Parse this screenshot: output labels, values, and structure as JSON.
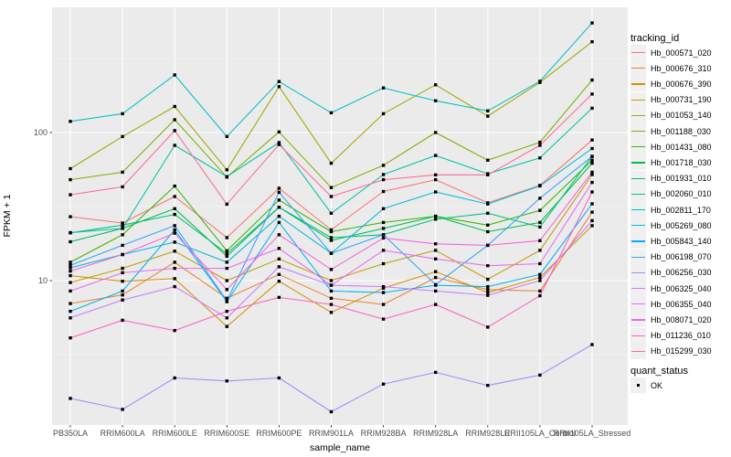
{
  "figure": {
    "background": "#FFFFFF",
    "panel_background": "#EBEBEB",
    "grid_major_color": "#FFFFFF",
    "grid_minor_color": "#FFFFFF",
    "tick_text_color": "#4D4D4D",
    "marker_color": "#000000",
    "legend_key_background": "#F0F0F0"
  },
  "chart_data": {
    "type": "line",
    "title": "",
    "xlabel": "sample_name",
    "ylabel": "FPKM + 1",
    "y_scale": "log10",
    "ylim": [
      1,
      680
    ],
    "y_major_ticks": [
      10,
      100
    ],
    "y_minor_ticks": [
      3.1623,
      31.623,
      316.23
    ],
    "grid": true,
    "legend_title": "tracking_id",
    "legend_position": "right",
    "marker": "black-square",
    "categories": [
      "PB350LA",
      "RRIM600LA",
      "RRIM600LE",
      "RRIM600SE",
      "RRIM600PE",
      "RRIM901LA",
      "RRIM928BA",
      "RRIM928LA",
      "RRIM928LE",
      "RRII105LA_Control",
      "RRII105LA_Stressed"
    ],
    "series": [
      {
        "name": "Hb_000571_020",
        "color": "#F8766D",
        "values": [
          27,
          24.5,
          37,
          19.5,
          42,
          22,
          40,
          48,
          33.5,
          44,
          89
        ]
      },
      {
        "name": "Hb_000676_310",
        "color": "#EA8331",
        "values": [
          7.0,
          8.0,
          13.3,
          7.6,
          11.0,
          7.6,
          6.9,
          10.5,
          8.7,
          8.5,
          29
        ]
      },
      {
        "name": "Hb_000676_390",
        "color": "#D89000",
        "values": [
          10.8,
          9.9,
          10.3,
          4.9,
          9.9,
          6.1,
          8.9,
          11.5,
          8.3,
          10.5,
          23.5
        ]
      },
      {
        "name": "Hb_000731_190",
        "color": "#C09B00",
        "values": [
          9.7,
          12.1,
          15.8,
          10.0,
          14.0,
          10.0,
          13.0,
          16.0,
          10.2,
          16.0,
          52
        ]
      },
      {
        "name": "Hb_001053_140",
        "color": "#A3A500",
        "values": [
          57,
          94,
          150,
          56,
          204,
          62,
          134,
          210,
          129,
          218,
          410
        ]
      },
      {
        "name": "Hb_001188_030",
        "color": "#7CAE00",
        "values": [
          48,
          54,
          122,
          50,
          101,
          42.5,
          60,
          100,
          65,
          86,
          226
        ]
      },
      {
        "name": "Hb_001431_080",
        "color": "#39B600",
        "values": [
          13.3,
          20.4,
          43.5,
          15.9,
          35,
          21.4,
          24.7,
          27.2,
          23.7,
          29.8,
          65
        ]
      },
      {
        "name": "Hb_001718_030",
        "color": "#00BB4E",
        "values": [
          18.3,
          22.5,
          30.6,
          14.6,
          31.3,
          18.7,
          22.5,
          27.2,
          21.4,
          24.7,
          62
        ]
      },
      {
        "name": "Hb_001931_010",
        "color": "#00BF7D",
        "values": [
          21,
          23.7,
          28,
          15.2,
          31.3,
          19.5,
          20.4,
          26,
          28.5,
          23,
          69
        ]
      },
      {
        "name": "Hb_002060_010",
        "color": "#00C1A3",
        "values": [
          21.1,
          22.5,
          82,
          50.4,
          85.5,
          28.5,
          52,
          70,
          52.7,
          67.4,
          146
        ]
      },
      {
        "name": "Hb_002811_170",
        "color": "#00BFC4",
        "values": [
          119,
          134,
          245,
          94,
          221,
          136,
          200,
          164,
          140,
          222,
          550
        ]
      },
      {
        "name": "Hb_005269_080",
        "color": "#00BAE0",
        "values": [
          12.2,
          15,
          18.2,
          13.3,
          27.2,
          15.3,
          30.6,
          39.7,
          32.9,
          43.6,
          78
        ]
      },
      {
        "name": "Hb_005843_140",
        "color": "#00B0F6",
        "values": [
          6.2,
          8.5,
          22,
          7.2,
          24.7,
          8.5,
          8.3,
          9.3,
          9.1,
          11,
          33
        ]
      },
      {
        "name": "Hb_006198_070",
        "color": "#35A2FF",
        "values": [
          12.7,
          17.3,
          23.5,
          7.3,
          39.5,
          15.3,
          20.4,
          9.4,
          17.3,
          36,
          69
        ]
      },
      {
        "name": "Hb_006256_030",
        "color": "#9590FF",
        "values": [
          1.6,
          1.35,
          2.2,
          2.1,
          2.2,
          1.3,
          2.0,
          2.4,
          1.96,
          2.3,
          3.7
        ]
      },
      {
        "name": "Hb_006325_040",
        "color": "#C77CFF",
        "values": [
          5.6,
          7.4,
          9.1,
          5.6,
          12.4,
          9.3,
          9.1,
          8.5,
          7.95,
          10,
          25.4
        ]
      },
      {
        "name": "Hb_006355_040",
        "color": "#E76BF3",
        "values": [
          8.5,
          11.3,
          12.1,
          12.1,
          16.5,
          9.3,
          16,
          14,
          12.6,
          13,
          46
        ]
      },
      {
        "name": "Hb_008071_020",
        "color": "#FA62DB",
        "values": [
          11.6,
          15,
          20.9,
          8.7,
          20.4,
          11.9,
          19.4,
          17.7,
          17.3,
          18.6,
          54
        ]
      },
      {
        "name": "Hb_011236_010",
        "color": "#FF62BC",
        "values": [
          4.1,
          5.4,
          4.6,
          6.2,
          7.7,
          6.9,
          5.5,
          6.9,
          4.85,
          7.9,
          39.7
        ]
      },
      {
        "name": "Hb_015299_030",
        "color": "#FF6A98",
        "values": [
          38,
          43,
          103,
          32.8,
          83,
          37,
          48,
          51.8,
          51.8,
          82,
          182
        ]
      }
    ],
    "quant_legend": {
      "title": "quant_status",
      "items": [
        {
          "label": "OK",
          "marker": "black-square"
        }
      ]
    }
  }
}
